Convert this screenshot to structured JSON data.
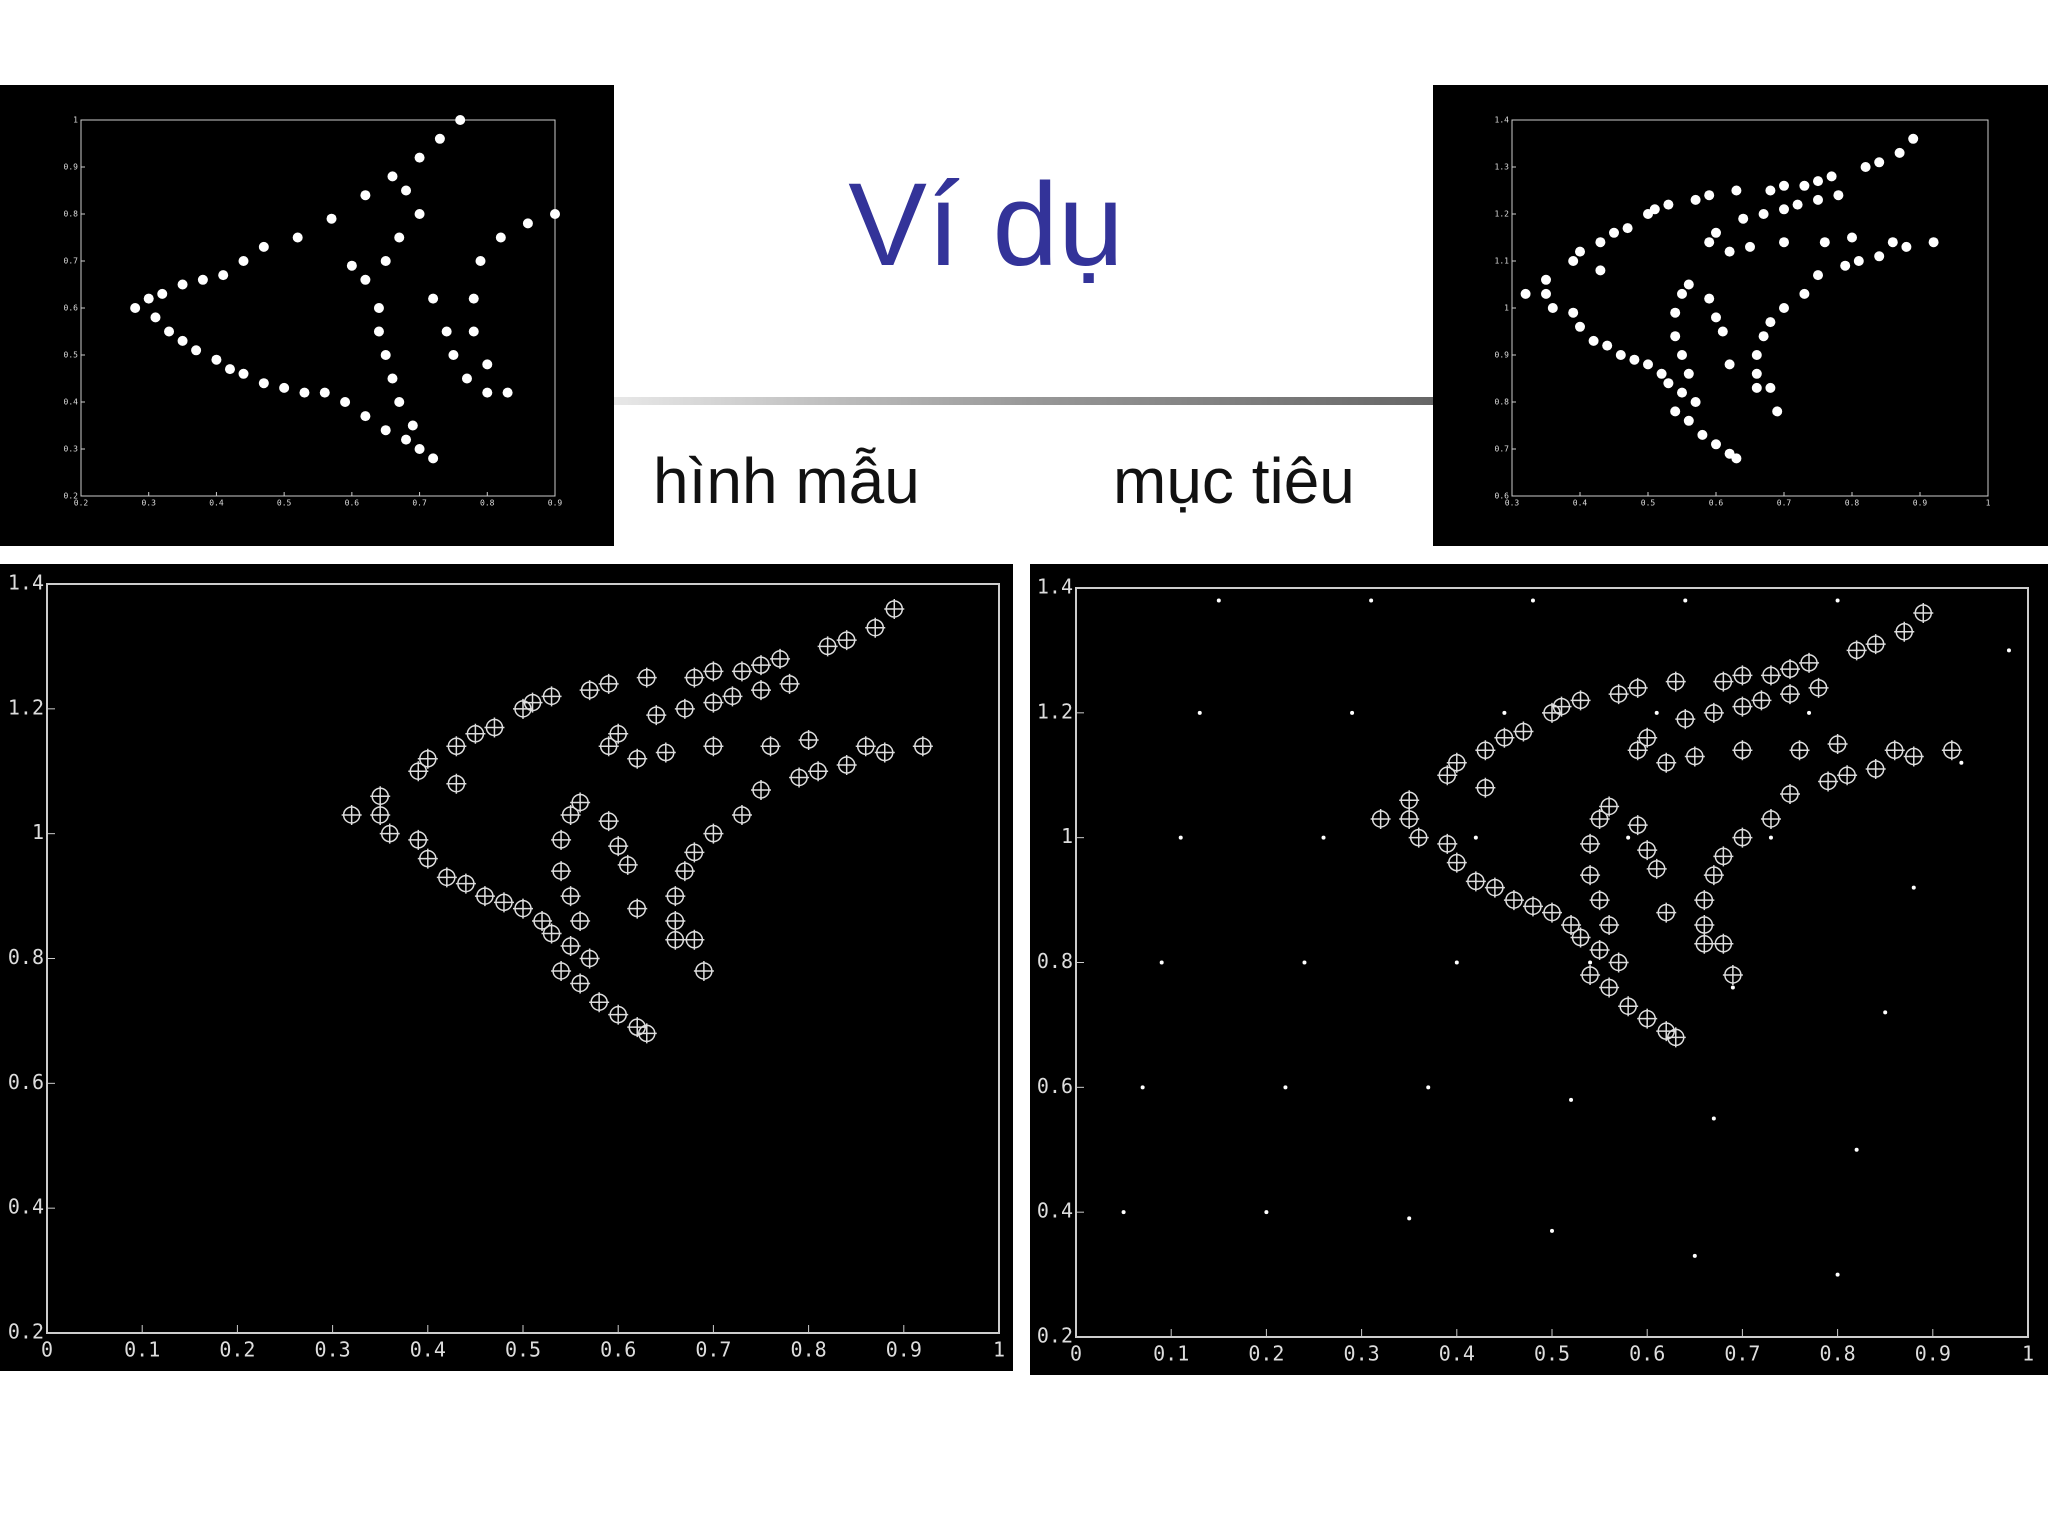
{
  "title": "Ví dụ",
  "labels": [
    "hình mẫu",
    "mục tiêu"
  ],
  "chart_data": [
    {
      "type": "scatter",
      "xlim": [
        0.2,
        0.9
      ],
      "ylim": [
        0.2,
        1.0
      ],
      "xticks": [
        0.2,
        0.3,
        0.4,
        0.5,
        0.6,
        0.7,
        0.8,
        0.9
      ],
      "yticks": [
        0.2,
        0.3,
        0.4,
        0.5,
        0.6,
        0.7,
        0.8,
        0.9,
        1
      ],
      "series": [
        {
          "marker": "dot",
          "color": "#ffffff",
          "x": [
            0.28,
            0.3,
            0.31,
            0.33,
            0.35,
            0.37,
            0.4,
            0.42,
            0.44,
            0.47,
            0.5,
            0.53,
            0.56,
            0.59,
            0.62,
            0.65,
            0.68,
            0.7,
            0.72,
            0.32,
            0.35,
            0.38,
            0.41,
            0.44,
            0.47,
            0.52,
            0.57,
            0.62,
            0.66,
            0.7,
            0.73,
            0.76,
            0.6,
            0.62,
            0.64,
            0.64,
            0.65,
            0.66,
            0.67,
            0.69,
            0.72,
            0.74,
            0.75,
            0.77,
            0.8,
            0.83,
            0.8,
            0.78,
            0.78,
            0.79,
            0.82,
            0.86,
            0.9,
            0.68,
            0.7,
            0.67,
            0.65
          ],
          "y": [
            0.6,
            0.62,
            0.58,
            0.55,
            0.53,
            0.51,
            0.49,
            0.47,
            0.46,
            0.44,
            0.43,
            0.42,
            0.42,
            0.4,
            0.37,
            0.34,
            0.32,
            0.3,
            0.28,
            0.63,
            0.65,
            0.66,
            0.67,
            0.7,
            0.73,
            0.75,
            0.79,
            0.84,
            0.88,
            0.92,
            0.96,
            1.0,
            0.69,
            0.66,
            0.6,
            0.55,
            0.5,
            0.45,
            0.4,
            0.35,
            0.62,
            0.55,
            0.5,
            0.45,
            0.42,
            0.42,
            0.48,
            0.55,
            0.62,
            0.7,
            0.75,
            0.78,
            0.8,
            0.85,
            0.8,
            0.75,
            0.7
          ]
        }
      ]
    },
    {
      "type": "scatter",
      "xlim": [
        0.3,
        1
      ],
      "ylim": [
        0.6,
        1.4
      ],
      "xticks": [
        0.3,
        0.4,
        0.5,
        0.6,
        0.7,
        0.8,
        0.9,
        1
      ],
      "yticks": [
        0.6,
        0.7,
        0.8,
        0.9,
        1,
        1.1,
        1.2,
        1.3,
        1.4
      ],
      "series": [
        {
          "marker": "dot",
          "color": "#ffffff",
          "x": [
            0.32,
            0.35,
            0.35,
            0.36,
            0.39,
            0.4,
            0.42,
            0.44,
            0.46,
            0.48,
            0.5,
            0.52,
            0.53,
            0.55,
            0.54,
            0.56,
            0.58,
            0.6,
            0.62,
            0.63,
            0.39,
            0.4,
            0.43,
            0.45,
            0.47,
            0.5,
            0.51,
            0.53,
            0.57,
            0.59,
            0.63,
            0.68,
            0.7,
            0.73,
            0.75,
            0.77,
            0.82,
            0.84,
            0.87,
            0.89,
            0.43,
            0.59,
            0.6,
            0.62,
            0.64,
            0.67,
            0.7,
            0.72,
            0.75,
            0.78,
            0.56,
            0.55,
            0.54,
            0.54,
            0.55,
            0.56,
            0.57,
            0.59,
            0.6,
            0.61,
            0.62,
            0.66,
            0.67,
            0.68,
            0.7,
            0.73,
            0.75,
            0.79,
            0.81,
            0.84,
            0.86,
            0.88,
            0.92,
            0.66,
            0.66,
            0.68,
            0.69,
            0.65,
            0.7,
            0.76,
            0.8
          ],
          "y": [
            1.03,
            1.06,
            1.03,
            1.0,
            0.99,
            0.96,
            0.93,
            0.92,
            0.9,
            0.89,
            0.88,
            0.86,
            0.84,
            0.82,
            0.78,
            0.76,
            0.73,
            0.71,
            0.69,
            0.68,
            1.1,
            1.12,
            1.14,
            1.16,
            1.17,
            1.2,
            1.21,
            1.22,
            1.23,
            1.24,
            1.25,
            1.25,
            1.26,
            1.26,
            1.27,
            1.28,
            1.3,
            1.31,
            1.33,
            1.36,
            1.08,
            1.14,
            1.16,
            1.12,
            1.19,
            1.2,
            1.21,
            1.22,
            1.23,
            1.24,
            1.05,
            1.03,
            0.99,
            0.94,
            0.9,
            0.86,
            0.8,
            1.02,
            0.98,
            0.95,
            0.88,
            0.9,
            0.94,
            0.97,
            1.0,
            1.03,
            1.07,
            1.09,
            1.1,
            1.11,
            1.14,
            1.13,
            1.14,
            0.86,
            0.83,
            0.83,
            0.78,
            1.13,
            1.14,
            1.14,
            1.15
          ]
        }
      ]
    },
    {
      "type": "scatter",
      "xlim": [
        0,
        1
      ],
      "ylim": [
        0.2,
        1.4
      ],
      "xticks": [
        0,
        0.1,
        0.2,
        0.3,
        0.4,
        0.5,
        0.6,
        0.7,
        0.8,
        0.9,
        1
      ],
      "yticks": [
        0.2,
        0.4,
        0.6,
        0.8,
        1,
        1.2,
        1.4
      ],
      "series": [
        {
          "marker": "circle-plus",
          "color": "#dddddd",
          "x": [
            0.32,
            0.35,
            0.35,
            0.36,
            0.39,
            0.4,
            0.42,
            0.44,
            0.46,
            0.48,
            0.5,
            0.52,
            0.53,
            0.55,
            0.54,
            0.56,
            0.58,
            0.6,
            0.62,
            0.63,
            0.39,
            0.4,
            0.43,
            0.45,
            0.47,
            0.5,
            0.51,
            0.53,
            0.57,
            0.59,
            0.63,
            0.68,
            0.7,
            0.73,
            0.75,
            0.77,
            0.82,
            0.84,
            0.87,
            0.89,
            0.43,
            0.59,
            0.6,
            0.62,
            0.64,
            0.67,
            0.7,
            0.72,
            0.75,
            0.78,
            0.56,
            0.55,
            0.54,
            0.54,
            0.55,
            0.56,
            0.57,
            0.59,
            0.6,
            0.61,
            0.62,
            0.66,
            0.67,
            0.68,
            0.7,
            0.73,
            0.75,
            0.79,
            0.81,
            0.84,
            0.86,
            0.88,
            0.92,
            0.66,
            0.66,
            0.68,
            0.69,
            0.65,
            0.7,
            0.76,
            0.8
          ],
          "y": [
            1.03,
            1.06,
            1.03,
            1.0,
            0.99,
            0.96,
            0.93,
            0.92,
            0.9,
            0.89,
            0.88,
            0.86,
            0.84,
            0.82,
            0.78,
            0.76,
            0.73,
            0.71,
            0.69,
            0.68,
            1.1,
            1.12,
            1.14,
            1.16,
            1.17,
            1.2,
            1.21,
            1.22,
            1.23,
            1.24,
            1.25,
            1.25,
            1.26,
            1.26,
            1.27,
            1.28,
            1.3,
            1.31,
            1.33,
            1.36,
            1.08,
            1.14,
            1.16,
            1.12,
            1.19,
            1.2,
            1.21,
            1.22,
            1.23,
            1.24,
            1.05,
            1.03,
            0.99,
            0.94,
            0.9,
            0.86,
            0.8,
            1.02,
            0.98,
            0.95,
            0.88,
            0.9,
            0.94,
            0.97,
            1.0,
            1.03,
            1.07,
            1.09,
            1.1,
            1.11,
            1.14,
            1.13,
            1.14,
            0.86,
            0.83,
            0.83,
            0.78,
            1.13,
            1.14,
            1.14,
            1.15
          ]
        }
      ]
    },
    {
      "type": "scatter",
      "xlim": [
        0,
        1
      ],
      "ylim": [
        0.2,
        1.4
      ],
      "xticks": [
        0,
        0.1,
        0.2,
        0.3,
        0.4,
        0.5,
        0.6,
        0.7,
        0.8,
        0.9,
        1
      ],
      "yticks": [
        0.2,
        0.4,
        0.6,
        0.8,
        1,
        1.2,
        1.4
      ],
      "series": [
        {
          "marker": "point",
          "color": "#ffffff",
          "x": [
            0.05,
            0.07,
            0.09,
            0.11,
            0.13,
            0.15,
            0.2,
            0.22,
            0.24,
            0.26,
            0.29,
            0.31,
            0.35,
            0.37,
            0.4,
            0.42,
            0.45,
            0.48,
            0.5,
            0.52,
            0.54,
            0.58,
            0.61,
            0.64,
            0.65,
            0.67,
            0.69,
            0.73,
            0.77,
            0.8,
            0.8,
            0.82,
            0.85,
            0.88,
            0.93,
            0.98
          ],
          "y": [
            0.4,
            0.6,
            0.8,
            1.0,
            1.2,
            1.38,
            0.4,
            0.6,
            0.8,
            1.0,
            1.2,
            1.38,
            0.39,
            0.6,
            0.8,
            1.0,
            1.2,
            1.38,
            0.37,
            0.58,
            0.8,
            1.0,
            1.2,
            1.38,
            0.33,
            0.55,
            0.76,
            1.0,
            1.2,
            1.38,
            0.3,
            0.5,
            0.72,
            0.92,
            1.12,
            1.3
          ]
        },
        {
          "marker": "circle-plus",
          "color": "#dddddd",
          "x": [
            0.32,
            0.35,
            0.35,
            0.36,
            0.39,
            0.4,
            0.42,
            0.44,
            0.46,
            0.48,
            0.5,
            0.52,
            0.53,
            0.55,
            0.54,
            0.56,
            0.58,
            0.6,
            0.62,
            0.63,
            0.39,
            0.4,
            0.43,
            0.45,
            0.47,
            0.5,
            0.51,
            0.53,
            0.57,
            0.59,
            0.63,
            0.68,
            0.7,
            0.73,
            0.75,
            0.77,
            0.82,
            0.84,
            0.87,
            0.89,
            0.43,
            0.59,
            0.6,
            0.62,
            0.64,
            0.67,
            0.7,
            0.72,
            0.75,
            0.78,
            0.56,
            0.55,
            0.54,
            0.54,
            0.55,
            0.56,
            0.57,
            0.59,
            0.6,
            0.61,
            0.62,
            0.66,
            0.67,
            0.68,
            0.7,
            0.73,
            0.75,
            0.79,
            0.81,
            0.84,
            0.86,
            0.88,
            0.92,
            0.66,
            0.66,
            0.68,
            0.69,
            0.65,
            0.7,
            0.76,
            0.8
          ],
          "y": [
            1.03,
            1.06,
            1.03,
            1.0,
            0.99,
            0.96,
            0.93,
            0.92,
            0.9,
            0.89,
            0.88,
            0.86,
            0.84,
            0.82,
            0.78,
            0.76,
            0.73,
            0.71,
            0.69,
            0.68,
            1.1,
            1.12,
            1.14,
            1.16,
            1.17,
            1.2,
            1.21,
            1.22,
            1.23,
            1.24,
            1.25,
            1.25,
            1.26,
            1.26,
            1.27,
            1.28,
            1.3,
            1.31,
            1.33,
            1.36,
            1.08,
            1.14,
            1.16,
            1.12,
            1.19,
            1.2,
            1.21,
            1.22,
            1.23,
            1.24,
            1.05,
            1.03,
            0.99,
            0.94,
            0.9,
            0.86,
            0.8,
            1.02,
            0.98,
            0.95,
            0.88,
            0.9,
            0.94,
            0.97,
            1.0,
            1.03,
            1.07,
            1.09,
            1.1,
            1.11,
            1.14,
            1.13,
            1.14,
            0.86,
            0.83,
            0.83,
            0.78,
            1.13,
            1.14,
            1.14,
            1.15
          ]
        }
      ]
    }
  ]
}
